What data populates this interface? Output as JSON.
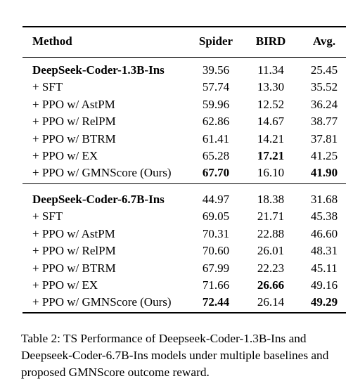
{
  "table": {
    "headers": {
      "method": "Method",
      "spider": "Spider",
      "bird": "BIRD",
      "avg": "Avg."
    },
    "groups": [
      {
        "rows": [
          {
            "method": "DeepSeek-Coder-1.3B-Ins",
            "spider": "39.56",
            "bird": "11.34",
            "avg": "25.45",
            "bold": [
              "method"
            ]
          },
          {
            "method": "+ SFT",
            "spider": "57.74",
            "bird": "13.30",
            "avg": "35.52",
            "bold": []
          },
          {
            "method": "+ PPO w/ AstPM",
            "spider": "59.96",
            "bird": "12.52",
            "avg": "36.24",
            "bold": []
          },
          {
            "method": "+ PPO w/ RelPM",
            "spider": "62.86",
            "bird": "14.67",
            "avg": "38.77",
            "bold": []
          },
          {
            "method": "+ PPO w/ BTRM",
            "spider": "61.41",
            "bird": "14.21",
            "avg": "37.81",
            "bold": []
          },
          {
            "method": "+ PPO w/ EX",
            "spider": "65.28",
            "bird": "17.21",
            "avg": "41.25",
            "bold": [
              "bird"
            ]
          },
          {
            "method": "+ PPO w/ GMNScore (Ours)",
            "spider": "67.70",
            "bird": "16.10",
            "avg": "41.90",
            "bold": [
              "spider",
              "avg"
            ]
          }
        ]
      },
      {
        "rows": [
          {
            "method": "DeepSeek-Coder-6.7B-Ins",
            "spider": "44.97",
            "bird": "18.38",
            "avg": "31.68",
            "bold": [
              "method"
            ]
          },
          {
            "method": "+ SFT",
            "spider": "69.05",
            "bird": "21.71",
            "avg": "45.38",
            "bold": []
          },
          {
            "method": "+ PPO w/ AstPM",
            "spider": "70.31",
            "bird": "22.88",
            "avg": "46.60",
            "bold": []
          },
          {
            "method": "+ PPO w/ RelPM",
            "spider": "70.60",
            "bird": "26.01",
            "avg": "48.31",
            "bold": []
          },
          {
            "method": "+ PPO w/ BTRM",
            "spider": "67.99",
            "bird": "22.23",
            "avg": "45.11",
            "bold": []
          },
          {
            "method": "+ PPO w/ EX",
            "spider": "71.66",
            "bird": "26.66",
            "avg": "49.16",
            "bold": [
              "bird"
            ]
          },
          {
            "method": "+ PPO w/ GMNScore (Ours)",
            "spider": "72.44",
            "bird": "26.14",
            "avg": "49.29",
            "bold": [
              "spider",
              "avg"
            ]
          }
        ]
      }
    ]
  },
  "caption": "Table 2: TS Performance of Deepseek-Coder-1.3B-Ins and Deepseek-Coder-6.7B-Ins models under multiple baselines and proposed GMNScore outcome reward."
}
